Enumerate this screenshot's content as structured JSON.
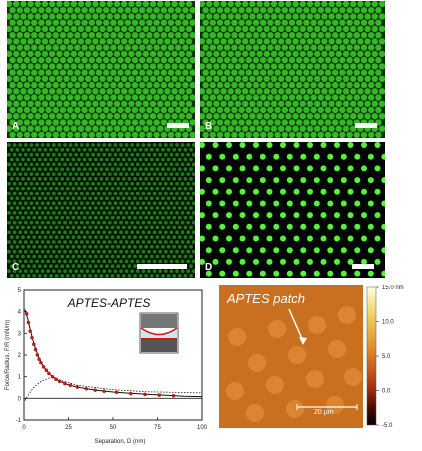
{
  "panels": {
    "a": {
      "label": "A"
    },
    "b": {
      "label": "B"
    },
    "c": {
      "label": "C"
    },
    "d": {
      "label": "D"
    }
  },
  "colors": {
    "fluorescence_green": "#3bcf2a",
    "afm_background": "#c8701f",
    "data_red": "#d01a10"
  },
  "chart_data": {
    "type": "scatter",
    "title": "APTES-APTES",
    "xlabel": "Separation, D (nm)",
    "ylabel": "Force/Radius, F/R (mN/m)",
    "xlim": [
      0,
      100
    ],
    "ylim": [
      -1,
      5
    ],
    "x_ticks": [
      "0",
      "25",
      "50",
      "75",
      "100"
    ],
    "y_ticks": [
      "-1",
      "0",
      "1",
      "2",
      "3",
      "4",
      "5"
    ],
    "series": [
      {
        "points": [
          [
            1.5,
            3.9
          ],
          [
            2.5,
            3.5
          ],
          [
            3.5,
            3.1
          ],
          [
            4.5,
            2.8
          ],
          [
            5.5,
            2.5
          ],
          [
            6.5,
            2.25
          ],
          [
            7.5,
            2.0
          ],
          [
            8.5,
            1.8
          ],
          [
            9.5,
            1.65
          ],
          [
            11,
            1.45
          ],
          [
            12.5,
            1.3
          ],
          [
            14,
            1.15
          ],
          [
            16,
            1.0
          ],
          [
            18,
            0.88
          ],
          [
            20,
            0.78
          ],
          [
            23,
            0.68
          ],
          [
            26,
            0.6
          ],
          [
            30,
            0.52
          ],
          [
            35,
            0.44
          ],
          [
            40,
            0.38
          ],
          [
            45,
            0.33
          ],
          [
            52,
            0.28
          ],
          [
            60,
            0.22
          ],
          [
            68,
            0.18
          ],
          [
            76,
            0.15
          ],
          [
            84,
            0.12
          ]
        ]
      }
    ],
    "fit_curve": [
      [
        0.5,
        4.1
      ],
      [
        2,
        3.7
      ],
      [
        4,
        3.0
      ],
      [
        6,
        2.4
      ],
      [
        8,
        1.95
      ],
      [
        10,
        1.6
      ],
      [
        13,
        1.25
      ],
      [
        16,
        1.0
      ],
      [
        20,
        0.8
      ],
      [
        25,
        0.62
      ],
      [
        30,
        0.52
      ],
      [
        40,
        0.38
      ],
      [
        50,
        0.29
      ],
      [
        60,
        0.23
      ],
      [
        70,
        0.18
      ],
      [
        80,
        0.14
      ],
      [
        90,
        0.1
      ],
      [
        100,
        0.08
      ]
    ],
    "dotted_curve": [
      [
        0.5,
        -0.1
      ],
      [
        2,
        0.1
      ],
      [
        4,
        0.35
      ],
      [
        6,
        0.55
      ],
      [
        10,
        0.8
      ],
      [
        16,
        1.0
      ],
      [
        20,
        0.85
      ],
      [
        30,
        0.6
      ],
      [
        50,
        0.4
      ],
      [
        70,
        0.3
      ],
      [
        100,
        0.25
      ]
    ]
  },
  "afm": {
    "title": "APTES patch",
    "scale_label": "20 µm"
  },
  "colorbar": {
    "labels": [
      "15.0 nm",
      "10.0",
      "5.0",
      "0.0",
      "-5.0"
    ],
    "values": [
      15,
      10,
      5,
      0,
      -5
    ]
  }
}
